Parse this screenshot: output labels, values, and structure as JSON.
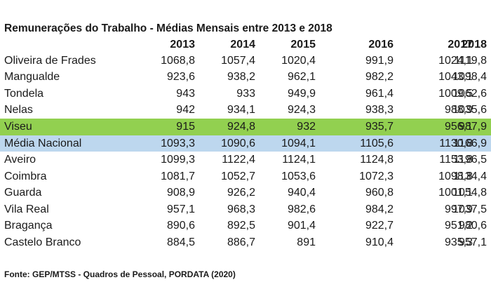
{
  "chart_data": {
    "type": "table",
    "title": "Remunerações do Trabalho - Médias Mensais entre 2013 e 2018",
    "columns": [
      "2013",
      "2014",
      "2015",
      "2016",
      "2017",
      "2018"
    ],
    "rows": [
      {
        "label": "Oliveira de Frades",
        "values": [
          "1068,8",
          "1057,4",
          "1020,4",
          "991,9",
          "1024,1",
          "1119,8"
        ],
        "highlight": ""
      },
      {
        "label": "Mangualde",
        "values": [
          "923,6",
          "938,2",
          "962,1",
          "982,2",
          "1043,1",
          "1098,4"
        ],
        "highlight": ""
      },
      {
        "label": "Tondela",
        "values": [
          "943",
          "933",
          "949,9",
          "961,4",
          "1009,5",
          "1062,6"
        ],
        "highlight": ""
      },
      {
        "label": "Nelas",
        "values": [
          "942",
          "934,1",
          "924,3",
          "938,3",
          "988,9",
          "1035,6"
        ],
        "highlight": ""
      },
      {
        "label": "Viseu",
        "values": [
          "915",
          "924,8",
          "932",
          "935,7",
          "956,1",
          "987,9"
        ],
        "highlight": "#92d050"
      },
      {
        "label": "Média Nacional",
        "values": [
          "1093,3",
          "1090,6",
          "1094,1",
          "1105,6",
          "1130,8",
          "1166,9"
        ],
        "highlight": "#bdd7ee"
      },
      {
        "label": "Aveiro",
        "values": [
          "1099,3",
          "1122,4",
          "1124,1",
          "1124,8",
          "1153,8",
          "1196,5"
        ],
        "highlight": ""
      },
      {
        "label": "Coimbra",
        "values": [
          "1081,7",
          "1052,7",
          "1053,6",
          "1072,3",
          "1098,8",
          "1134,4"
        ],
        "highlight": ""
      },
      {
        "label": "Guarda",
        "values": [
          "908,9",
          "926,2",
          "940,4",
          "960,8",
          "1001,1",
          "1054,8"
        ],
        "highlight": ""
      },
      {
        "label": "Vila Real",
        "values": [
          "957,1",
          "968,3",
          "982,6",
          "984,2",
          "997,9",
          "1037,5"
        ],
        "highlight": ""
      },
      {
        "label": "Bragança",
        "values": [
          "890,6",
          "892,5",
          "901,4",
          "922,7",
          "951,2",
          "980,6"
        ],
        "highlight": ""
      },
      {
        "label": "Castelo Branco",
        "values": [
          "884,5",
          "886,7",
          "891",
          "910,4",
          "935,3",
          "957,1"
        ],
        "highlight": ""
      }
    ],
    "source": "Fonte: GEP/MTSS - Quadros de Pessoal, PORDATA (2020)"
  }
}
